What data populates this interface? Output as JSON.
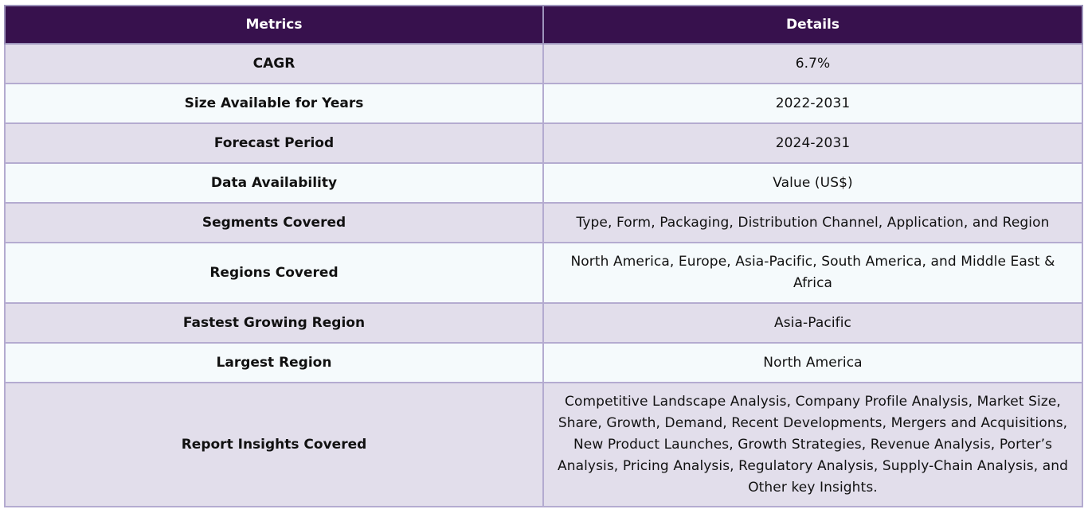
{
  "table": {
    "headers": {
      "metrics": "Metrics",
      "details": "Details"
    },
    "rows": [
      {
        "metric": "CAGR",
        "detail": "6.7%"
      },
      {
        "metric": "Size Available for Years",
        "detail": "2022-2031"
      },
      {
        "metric": "Forecast Period",
        "detail": "2024-2031"
      },
      {
        "metric": "Data Availability",
        "detail": "Value (US$)"
      },
      {
        "metric": "Segments Covered",
        "detail": "Type, Form, Packaging, Distribution Channel, Application, and Region"
      },
      {
        "metric": "Regions Covered",
        "detail": "North America, Europe, Asia-Pacific, South America, and Middle East & Africa"
      },
      {
        "metric": "Fastest Growing Region",
        "detail": "Asia-Pacific"
      },
      {
        "metric": "Largest Region",
        "detail": "North America"
      },
      {
        "metric": "Report Insights Covered",
        "detail": "Competitive Landscape Analysis, Company Profile Analysis, Market Size, Share, Growth, Demand, Recent Developments, Mergers and Acquisitions, New Product Launches, Growth Strategies, Revenue Analysis, Porter’s Analysis, Pricing Analysis, Regulatory Analysis, Supply-Chain Analysis, and Other key Insights."
      }
    ]
  },
  "colors": {
    "header_bg": "#37114d",
    "row_odd_bg": "#e2deeb",
    "row_even_bg": "#f5fafc",
    "border": "#b4abd0"
  }
}
